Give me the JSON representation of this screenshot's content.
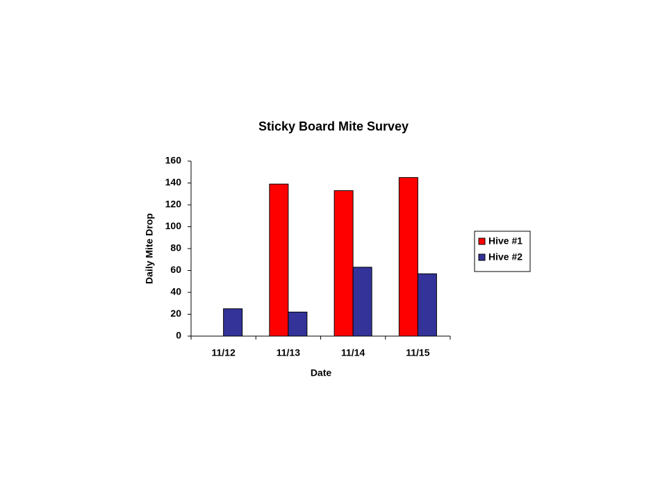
{
  "chart_data": {
    "type": "bar",
    "title": "Sticky Board Mite Survey",
    "x_label": "Date",
    "y_label": "Daily Mite Drop",
    "categories": [
      "11/12",
      "11/13",
      "11/14",
      "11/15"
    ],
    "series": [
      {
        "name": "Hive #1",
        "color": "#ff0000",
        "values": [
          null,
          139,
          133,
          145
        ]
      },
      {
        "name": "Hive #2",
        "color": "#333399",
        "values": [
          25,
          22,
          63,
          57
        ]
      }
    ],
    "ylim": [
      0,
      160
    ],
    "yticks": [
      0,
      20,
      40,
      60,
      80,
      100,
      120,
      140,
      160
    ],
    "grid": false,
    "legend": "right"
  }
}
